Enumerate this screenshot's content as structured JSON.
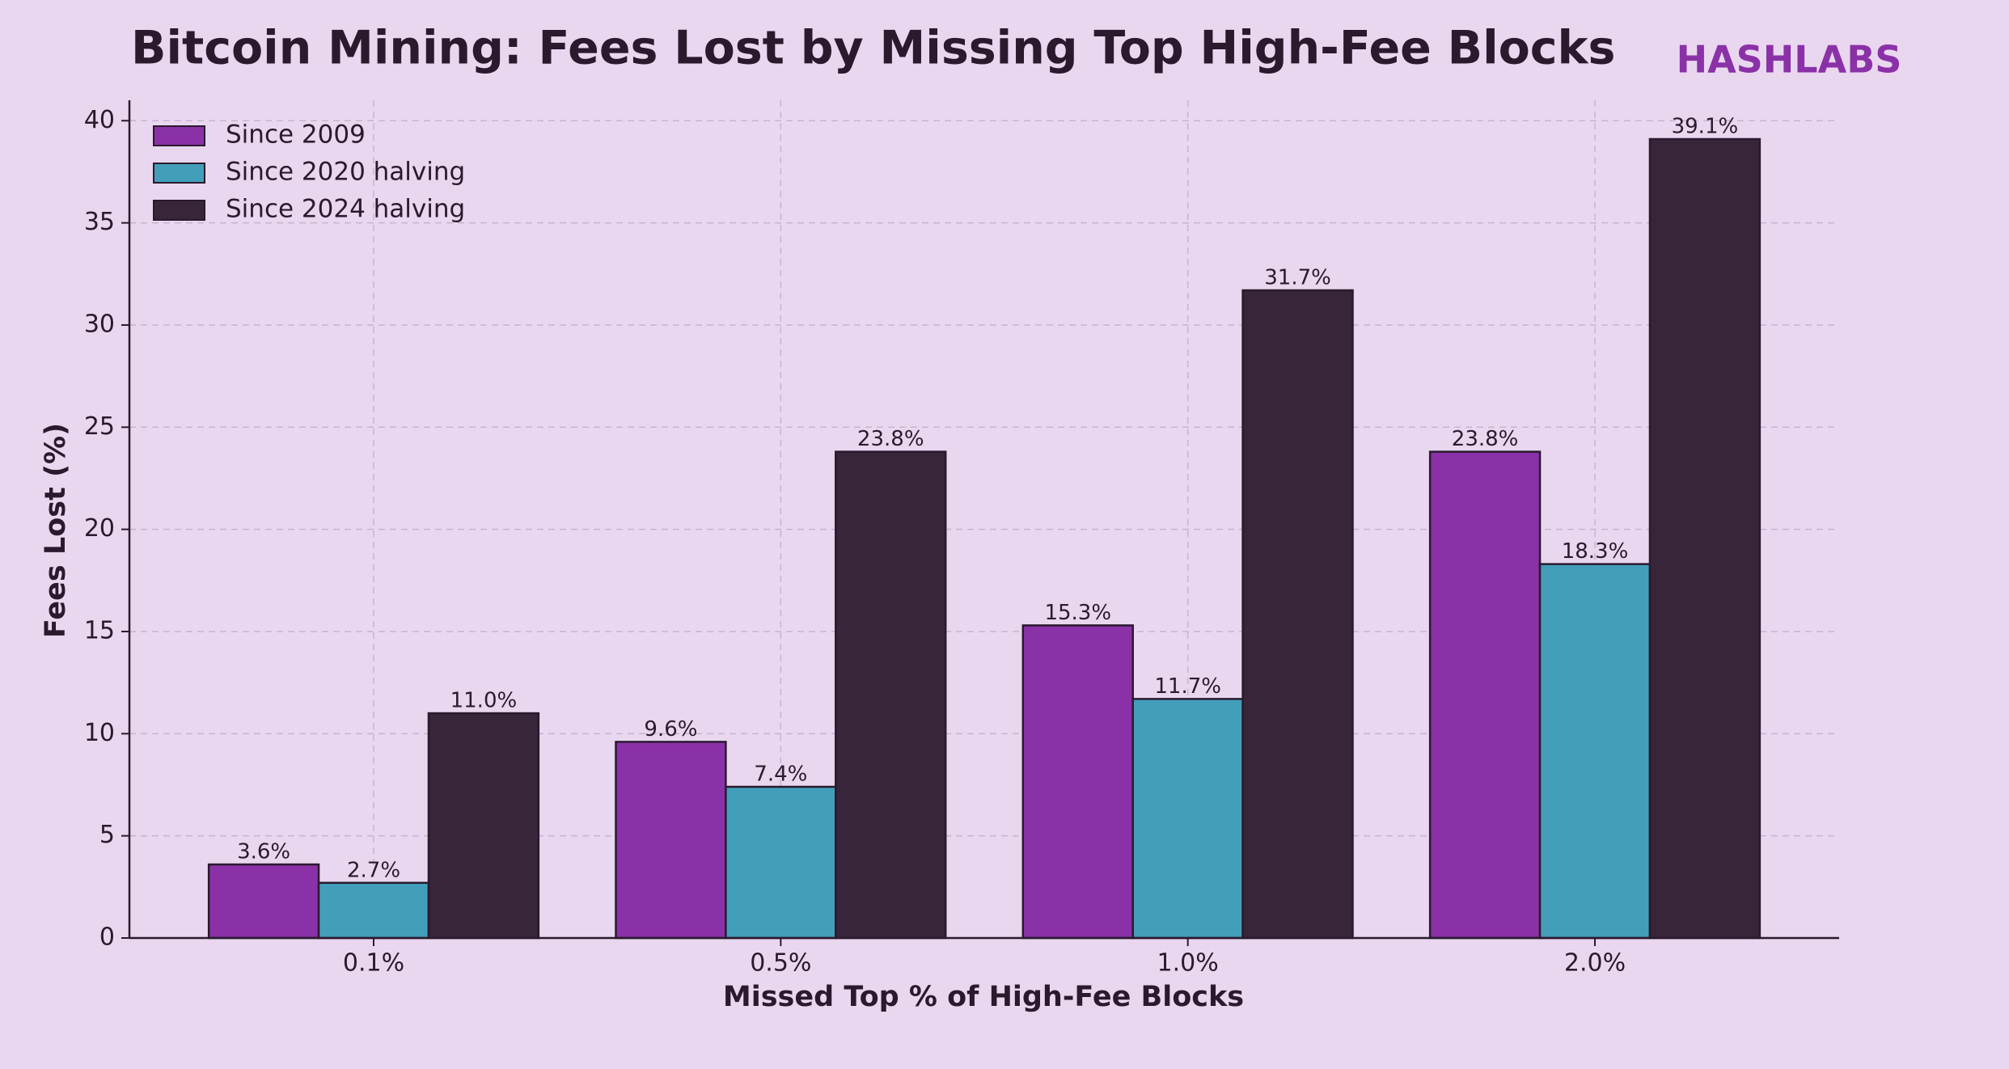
{
  "chart_data": {
    "type": "bar",
    "title": "Bitcoin Mining: Fees Lost by Missing Top High-Fee Blocks",
    "brand": "HASHLABS",
    "x_label": "Missed Top % of High-Fee Blocks",
    "y_label": "Fees Lost (%)",
    "categories": [
      "0.1%",
      "0.5%",
      "1.0%",
      "2.0%"
    ],
    "series": [
      {
        "name": "Since 2009",
        "color": "#8b31a8",
        "values": [
          3.6,
          9.6,
          15.3,
          23.8
        ],
        "value_labels": [
          "3.6%",
          "9.6%",
          "15.3%",
          "23.8%"
        ]
      },
      {
        "name": "Since 2020 halving",
        "color": "#439fb9",
        "values": [
          2.7,
          7.4,
          11.7,
          18.3
        ],
        "value_labels": [
          "2.7%",
          "7.4%",
          "11.7%",
          "18.3%"
        ]
      },
      {
        "name": "Since 2024 halving",
        "color": "#38253a",
        "values": [
          11.0,
          23.8,
          31.7,
          39.1
        ],
        "value_labels": [
          "11.0%",
          "23.8%",
          "31.7%",
          "39.1%"
        ]
      }
    ],
    "ylim": [
      0,
      41
    ],
    "yticks": [
      0,
      5,
      10,
      15,
      20,
      25,
      30,
      35,
      40
    ],
    "grid": true,
    "legend": "upper-left"
  }
}
